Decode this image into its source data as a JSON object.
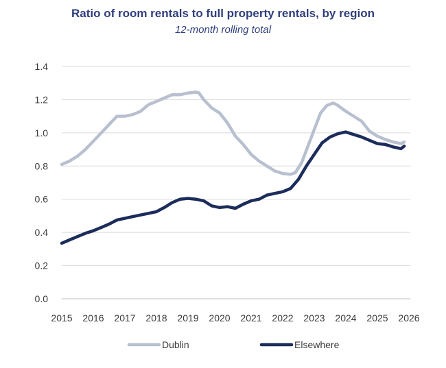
{
  "chart_data": {
    "type": "line",
    "title": "Ratio of room rentals to full property rentals, by region",
    "subtitle": "12-month rolling total",
    "xlabel": "",
    "ylabel": "",
    "xlim": [
      2015,
      2026
    ],
    "ylim": [
      0,
      1.4
    ],
    "x_ticks": [
      "2015",
      "2016",
      "2017",
      "2018",
      "2019",
      "2020",
      "2021",
      "2022",
      "2023",
      "2024",
      "2025",
      "2026"
    ],
    "y_ticks": [
      "0.0",
      "0.2",
      "0.4",
      "0.6",
      "0.8",
      "1.0",
      "1.2",
      "1.4"
    ],
    "grid": true,
    "legend_position": "bottom",
    "series": [
      {
        "name": "Dublin",
        "color": "#b8c0d0",
        "points": [
          [
            2015.0,
            0.81
          ],
          [
            2015.25,
            0.83
          ],
          [
            2015.5,
            0.86
          ],
          [
            2015.75,
            0.9
          ],
          [
            2016.0,
            0.95
          ],
          [
            2016.25,
            1.0
          ],
          [
            2016.5,
            1.05
          ],
          [
            2016.75,
            1.1
          ],
          [
            2017.0,
            1.1
          ],
          [
            2017.25,
            1.11
          ],
          [
            2017.5,
            1.13
          ],
          [
            2017.75,
            1.17
          ],
          [
            2018.0,
            1.19
          ],
          [
            2018.25,
            1.21
          ],
          [
            2018.5,
            1.23
          ],
          [
            2018.75,
            1.23
          ],
          [
            2019.0,
            1.24
          ],
          [
            2019.25,
            1.245
          ],
          [
            2019.35,
            1.24
          ],
          [
            2019.5,
            1.2
          ],
          [
            2019.75,
            1.15
          ],
          [
            2020.0,
            1.12
          ],
          [
            2020.25,
            1.06
          ],
          [
            2020.5,
            0.98
          ],
          [
            2020.75,
            0.93
          ],
          [
            2021.0,
            0.87
          ],
          [
            2021.25,
            0.83
          ],
          [
            2021.5,
            0.8
          ],
          [
            2021.75,
            0.77
          ],
          [
            2022.0,
            0.755
          ],
          [
            2022.25,
            0.75
          ],
          [
            2022.4,
            0.76
          ],
          [
            2022.6,
            0.82
          ],
          [
            2022.8,
            0.92
          ],
          [
            2023.0,
            1.02
          ],
          [
            2023.2,
            1.12
          ],
          [
            2023.4,
            1.165
          ],
          [
            2023.6,
            1.18
          ],
          [
            2023.75,
            1.165
          ],
          [
            2024.0,
            1.13
          ],
          [
            2024.25,
            1.1
          ],
          [
            2024.5,
            1.07
          ],
          [
            2024.75,
            1.01
          ],
          [
            2025.0,
            0.98
          ],
          [
            2025.25,
            0.96
          ],
          [
            2025.5,
            0.945
          ],
          [
            2025.75,
            0.935
          ],
          [
            2025.85,
            0.945
          ]
        ]
      },
      {
        "name": "Elsewhere",
        "color": "#1c2c5b",
        "points": [
          [
            2015.0,
            0.335
          ],
          [
            2015.25,
            0.355
          ],
          [
            2015.5,
            0.375
          ],
          [
            2015.75,
            0.395
          ],
          [
            2016.0,
            0.41
          ],
          [
            2016.25,
            0.43
          ],
          [
            2016.5,
            0.45
          ],
          [
            2016.75,
            0.475
          ],
          [
            2017.0,
            0.485
          ],
          [
            2017.25,
            0.495
          ],
          [
            2017.5,
            0.505
          ],
          [
            2017.75,
            0.515
          ],
          [
            2018.0,
            0.525
          ],
          [
            2018.25,
            0.55
          ],
          [
            2018.5,
            0.58
          ],
          [
            2018.75,
            0.6
          ],
          [
            2019.0,
            0.605
          ],
          [
            2019.25,
            0.6
          ],
          [
            2019.5,
            0.59
          ],
          [
            2019.75,
            0.56
          ],
          [
            2020.0,
            0.55
          ],
          [
            2020.25,
            0.555
          ],
          [
            2020.5,
            0.545
          ],
          [
            2020.75,
            0.57
          ],
          [
            2021.0,
            0.59
          ],
          [
            2021.25,
            0.6
          ],
          [
            2021.5,
            0.625
          ],
          [
            2021.75,
            0.635
          ],
          [
            2022.0,
            0.645
          ],
          [
            2022.25,
            0.665
          ],
          [
            2022.5,
            0.72
          ],
          [
            2022.75,
            0.8
          ],
          [
            2023.0,
            0.87
          ],
          [
            2023.25,
            0.94
          ],
          [
            2023.5,
            0.975
          ],
          [
            2023.75,
            0.995
          ],
          [
            2024.0,
            1.005
          ],
          [
            2024.25,
            0.99
          ],
          [
            2024.5,
            0.975
          ],
          [
            2024.75,
            0.955
          ],
          [
            2025.0,
            0.935
          ],
          [
            2025.25,
            0.93
          ],
          [
            2025.5,
            0.915
          ],
          [
            2025.75,
            0.905
          ],
          [
            2025.85,
            0.92
          ]
        ]
      }
    ]
  }
}
